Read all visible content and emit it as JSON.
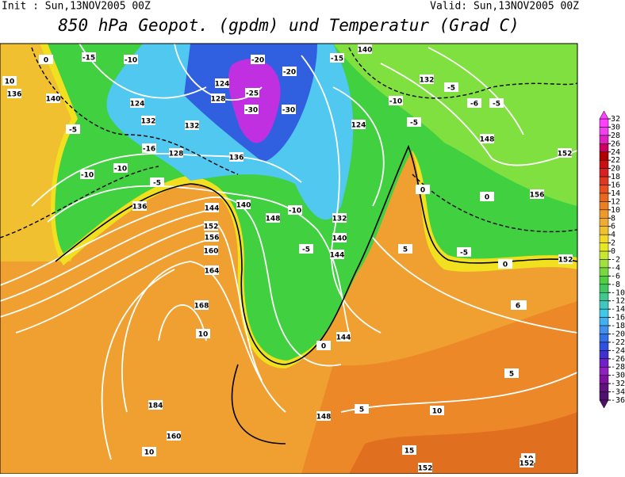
{
  "header": {
    "init": "Init : Sun,13NOV2005 00Z",
    "valid": "Valid: Sun,13NOV2005 00Z",
    "title": "850 hPa Geopot. (gpdm) und Temperatur (Grad C)"
  },
  "colorbar": {
    "ticks": [
      32,
      30,
      28,
      26,
      24,
      22,
      20,
      18,
      16,
      14,
      12,
      10,
      8,
      6,
      4,
      2,
      0,
      -2,
      -4,
      -6,
      -8,
      -10,
      -12,
      -14,
      -16,
      -18,
      -20,
      -22,
      -24,
      -26,
      -28,
      -30,
      -32,
      -34,
      -36
    ],
    "colors": [
      "#ff40ff",
      "#f040f0",
      "#e020c0",
      "#c80060",
      "#b00000",
      "#c81010",
      "#d82020",
      "#e03820",
      "#e85020",
      "#e86820",
      "#ec8020",
      "#f09828",
      "#f0ac30",
      "#f0c030",
      "#f4d828",
      "#e8e820",
      "#c8e830",
      "#a0e040",
      "#78d840",
      "#50d040",
      "#40c860",
      "#40c890",
      "#40c8c0",
      "#40c8e8",
      "#40b0f0",
      "#4090f0",
      "#3070e8",
      "#3050e0",
      "#4030d0",
      "#7020c8",
      "#9020c0",
      "#8010a0",
      "#601080",
      "#501070"
    ]
  },
  "labels": [
    "0",
    "-15",
    "-10",
    "-20",
    "-20",
    "-15",
    "140",
    "10",
    "136",
    "140",
    "124",
    "-5",
    "132",
    "128",
    "124",
    "-16",
    "-10",
    "-5",
    "-10",
    "-25",
    "-30",
    "-30",
    "128",
    "132",
    "136",
    "-5",
    "-6",
    "-5",
    "-5",
    "148",
    "152",
    "156",
    "0",
    "6",
    "136",
    "144",
    "152",
    "156",
    "160",
    "164",
    "168",
    "10",
    "140",
    "148",
    "-10",
    "-5",
    "144",
    "132",
    "140",
    "0",
    "5",
    "-5",
    "0",
    "152",
    "184",
    "160",
    "10",
    "148",
    "10",
    "5",
    "15",
    "152",
    "10",
    "152",
    "5",
    "6",
    "144",
    "0",
    "124",
    "-10",
    "132"
  ]
}
